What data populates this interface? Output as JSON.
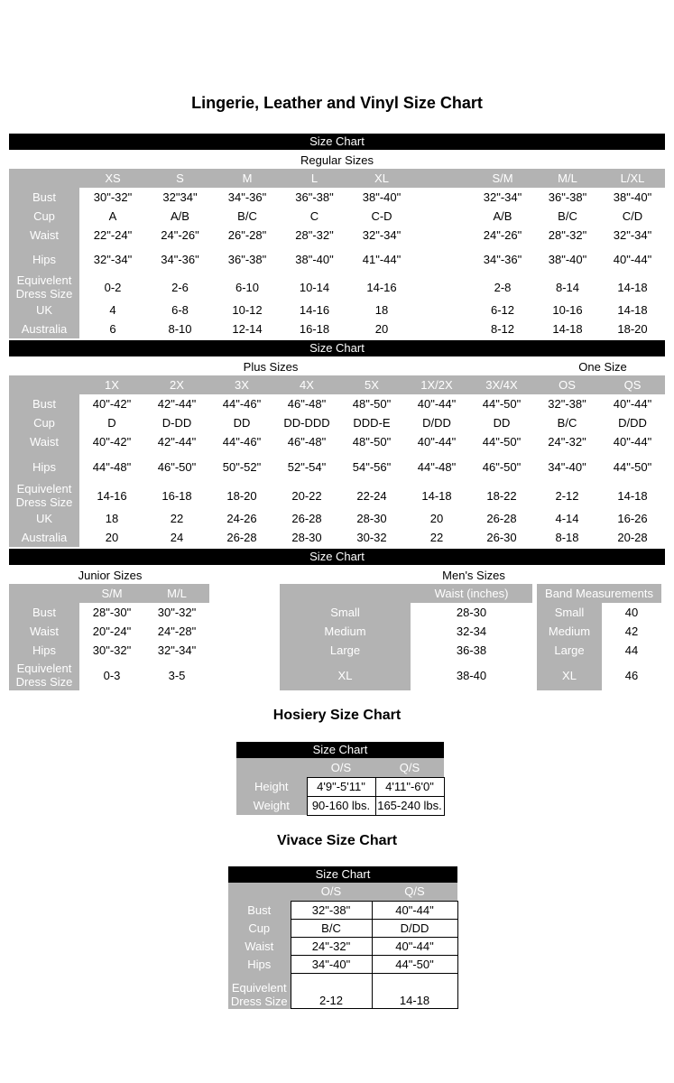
{
  "page": {
    "title": "Lingerie, Leather and Vinyl Size Chart"
  },
  "bars": {
    "label": "Size Chart"
  },
  "regular": {
    "caption": "Regular Sizes",
    "columns": [
      "XS",
      "S",
      "M",
      "L",
      "XL",
      "",
      "S/M",
      "M/L",
      "L/XL"
    ],
    "rows": [
      {
        "label": "Bust",
        "values": [
          "30\"-32\"",
          "32\"34\"",
          "34\"-36\"",
          "36\"-38\"",
          "38\"-40\"",
          "",
          "32\"-34\"",
          "36\"-38\"",
          "38\"-40\""
        ]
      },
      {
        "label": "Cup",
        "values": [
          "A",
          "A/B",
          "B/C",
          "C",
          "C-D",
          "",
          "A/B",
          "B/C",
          "C/D"
        ]
      },
      {
        "label": "Waist",
        "values": [
          "22\"-24\"",
          "24\"-26\"",
          "26\"-28\"",
          "28\"-32\"",
          "32\"-34\"",
          "",
          "24\"-26\"",
          "28\"-32\"",
          "32\"-34\""
        ]
      },
      {
        "label": "Hips",
        "values": [
          "32\"-34\"",
          "34\"-36\"",
          "36\"-38\"",
          "38\"-40\"",
          "41\"-44\"",
          "",
          "34\"-36\"",
          "38\"-40\"",
          "40\"-44\""
        ]
      },
      {
        "label": "Equivelent Dress Size",
        "values": [
          "0-2",
          "2-6",
          "6-10",
          "10-14",
          "14-16",
          "",
          "2-8",
          "8-14",
          "14-18"
        ]
      },
      {
        "label": "UK",
        "values": [
          "4",
          "6-8",
          "10-12",
          "14-16",
          "18",
          "",
          "6-12",
          "10-16",
          "14-18"
        ]
      },
      {
        "label": "Australia",
        "values": [
          "6",
          "8-10",
          "12-14",
          "16-18",
          "20",
          "",
          "8-12",
          "14-18",
          "18-20"
        ]
      }
    ]
  },
  "plus": {
    "caption_left": "Plus Sizes",
    "caption_right": "One Size",
    "columns": [
      "1X",
      "2X",
      "3X",
      "4X",
      "5X",
      "1X/2X",
      "3X/4X",
      "OS",
      "QS"
    ],
    "rows": [
      {
        "label": "Bust",
        "values": [
          "40\"-42\"",
          "42\"-44\"",
          "44\"-46\"",
          "46\"-48\"",
          "48\"-50\"",
          "40\"-44\"",
          "44\"-50\"",
          "32\"-38\"",
          "40\"-44\""
        ]
      },
      {
        "label": "Cup",
        "values": [
          "D",
          "D-DD",
          "DD",
          "DD-DDD",
          "DDD-E",
          "D/DD",
          "DD",
          "B/C",
          "D/DD"
        ]
      },
      {
        "label": "Waist",
        "values": [
          "40\"-42\"",
          "42\"-44\"",
          "44\"-46\"",
          "46\"-48\"",
          "48\"-50\"",
          "40\"-44\"",
          "44\"-50\"",
          "24\"-32\"",
          "40\"-44\""
        ]
      },
      {
        "label": "Hips",
        "values": [
          "44\"-48\"",
          "46\"-50\"",
          "50\"-52\"",
          "52\"-54\"",
          "54\"-56\"",
          "44\"-48\"",
          "46\"-50\"",
          "34\"-40\"",
          "44\"-50\""
        ]
      },
      {
        "label": "Equivelent Dress Size",
        "values": [
          "14-16",
          "16-18",
          "18-20",
          "20-22",
          "22-24",
          "14-18",
          "18-22",
          "2-12",
          "14-18"
        ]
      },
      {
        "label": "UK",
        "values": [
          "18",
          "22",
          "24-26",
          "26-28",
          "28-30",
          "20",
          "26-28",
          "4-14",
          "16-26"
        ]
      },
      {
        "label": "Australia",
        "values": [
          "20",
          "24",
          "26-28",
          "28-30",
          "30-32",
          "22",
          "26-30",
          "8-18",
          "20-28"
        ]
      }
    ]
  },
  "junior": {
    "caption": "Junior Sizes",
    "columns": [
      "S/M",
      "M/L"
    ],
    "rows": [
      {
        "label": "Bust",
        "values": [
          "28\"-30\"",
          "30\"-32\""
        ]
      },
      {
        "label": "Waist",
        "values": [
          "20\"-24\"",
          "24\"-28\""
        ]
      },
      {
        "label": "Hips",
        "values": [
          "30\"-32\"",
          "32\"-34\""
        ]
      },
      {
        "label": "Equivelent Dress Size",
        "values": [
          "0-3",
          "3-5"
        ]
      }
    ]
  },
  "mens": {
    "caption": "Men's Sizes",
    "waist": {
      "columns": [
        "Waist (inches)"
      ],
      "rows": [
        {
          "label": "Small",
          "values": [
            "28-30"
          ]
        },
        {
          "label": "Medium",
          "values": [
            "32-34"
          ]
        },
        {
          "label": "Large",
          "values": [
            "36-38"
          ]
        },
        {
          "label": "XL",
          "values": [
            "38-40"
          ]
        }
      ]
    },
    "band": {
      "corner": false,
      "columns": [
        {
          "label": "Band Measurements",
          "span": 2
        }
      ],
      "rows": [
        {
          "label": "Small",
          "values": [
            "40"
          ]
        },
        {
          "label": "Medium",
          "values": [
            "42"
          ]
        },
        {
          "label": "Large",
          "values": [
            "44"
          ]
        },
        {
          "label": "XL",
          "values": [
            "46"
          ]
        }
      ]
    }
  },
  "hosiery": {
    "title": "Hosiery Size Chart",
    "columns": [
      "O/S",
      "Q/S"
    ],
    "rows": [
      {
        "label": "Height",
        "values": [
          "4'9\"-5'11\"",
          "4'11\"-6'0\""
        ]
      },
      {
        "label": "Weight",
        "values": [
          "90-160 lbs.",
          "165-240 lbs."
        ]
      }
    ]
  },
  "vivace": {
    "title": "Vivace Size Chart",
    "columns": [
      "O/S",
      "Q/S"
    ],
    "rows": [
      {
        "label": "Bust",
        "values": [
          "32\"-38\"",
          "40\"-44\""
        ]
      },
      {
        "label": "Cup",
        "values": [
          "B/C",
          "D/DD"
        ]
      },
      {
        "label": "Waist",
        "values": [
          "24\"-32\"",
          "40\"-44\""
        ]
      },
      {
        "label": "Hips",
        "values": [
          "34\"-40\"",
          "44\"-50\""
        ]
      },
      {
        "label": "Equivelent Dress Size",
        "values": [
          "2-12",
          "14-18"
        ]
      }
    ]
  }
}
